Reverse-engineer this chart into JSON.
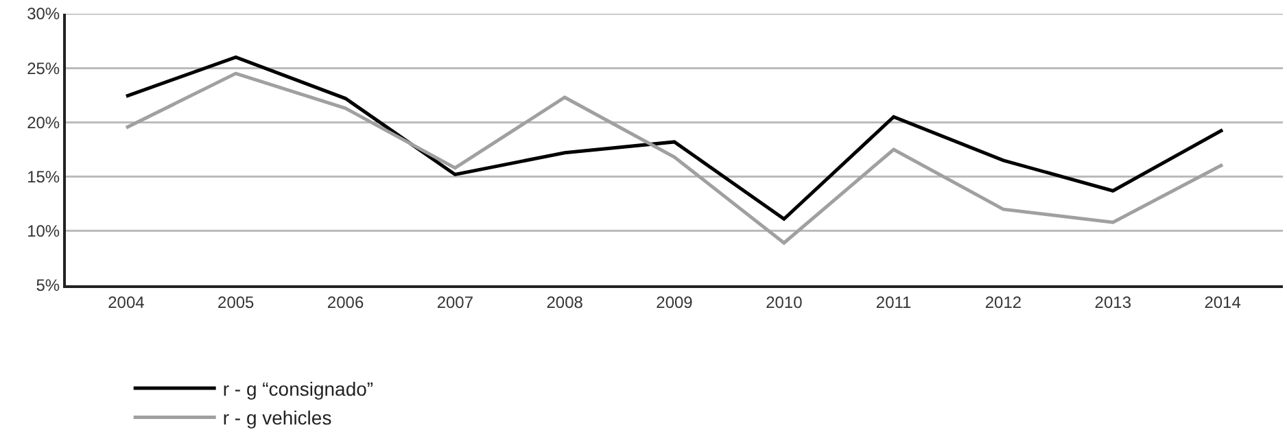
{
  "chart_data": {
    "type": "line",
    "categories": [
      "2004",
      "2005",
      "2006",
      "2007",
      "2008",
      "2009",
      "2010",
      "2011",
      "2012",
      "2013",
      "2014"
    ],
    "series": [
      {
        "name": "r - g “consignado”",
        "color": "#000000",
        "values": [
          22.4,
          26.0,
          22.2,
          15.2,
          17.2,
          18.2,
          11.1,
          20.5,
          16.5,
          13.7,
          19.3
        ]
      },
      {
        "name": "r - g vehicles",
        "color": "#a0a0a0",
        "values": [
          19.5,
          24.5,
          21.3,
          15.8,
          22.3,
          16.8,
          8.9,
          17.5,
          12.0,
          10.8,
          16.1
        ]
      }
    ],
    "ylim": [
      5,
      30
    ],
    "yticks": [
      {
        "value": 5,
        "label": "5%"
      },
      {
        "value": 10,
        "label": "10%"
      },
      {
        "value": 15,
        "label": "15%"
      },
      {
        "value": 20,
        "label": "20%"
      },
      {
        "value": 25,
        "label": "25%"
      },
      {
        "value": 30,
        "label": "30%"
      }
    ],
    "grid": "y",
    "legend": "bottom",
    "marker": "none",
    "line_style": "solid"
  }
}
